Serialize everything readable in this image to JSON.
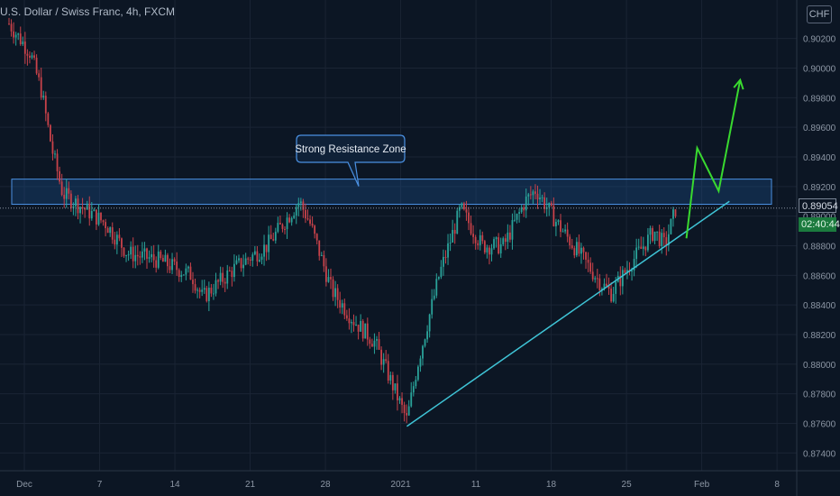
{
  "header": {
    "symbol_title": "U.S. Dollar / Swiss Franc, 4h, FXCM",
    "currency_badge": "CHF"
  },
  "price_tags": {
    "last_price": "0.89054",
    "countdown": "02:40:44"
  },
  "annotation": {
    "label": "Strong Resistance Zone"
  },
  "colors": {
    "background": "#0c1624",
    "grid": "#1a2434",
    "up_candle": "#2aa39a",
    "down_candle": "#c8424a",
    "zone_fill": "#1e4f8c",
    "zone_border": "#4a90e2",
    "trendline": "#3fc4d6",
    "projection": "#39d92f",
    "axis_text": "#8c96a4"
  },
  "chart_data": {
    "type": "candlestick",
    "symbol": "USDCHF",
    "timeframe": "4h",
    "x_ticks": [
      "Dec",
      "7",
      "14",
      "21",
      "28",
      "2021",
      "11",
      "18",
      "25",
      "Feb",
      "8"
    ],
    "y_ticks": [
      "0.87400",
      "0.87600",
      "0.87800",
      "0.88000",
      "0.88200",
      "0.88400",
      "0.88600",
      "0.88800",
      "0.89000",
      "0.89200",
      "0.89400",
      "0.89600",
      "0.89800",
      "0.90000",
      "0.90200"
    ],
    "ylim": [
      0.8728,
      0.9046
    ],
    "resistance_zone": [
      0.8908,
      0.8925
    ],
    "last_price": 0.89054,
    "ascending_trendline": [
      {
        "x": "Jan 6",
        "y": 0.8758
      },
      {
        "x": "Feb 5",
        "y": 0.891
      }
    ],
    "projection_path": [
      {
        "x": "Feb 1",
        "y": 0.8885
      },
      {
        "x": "Feb 2",
        "y": 0.8946
      },
      {
        "x": "Feb 4",
        "y": 0.8917
      },
      {
        "x": "Feb 6",
        "y": 0.8992
      }
    ],
    "price_path": [
      {
        "x": "Nov 30",
        "y": 0.903
      },
      {
        "x": "Dec 2",
        "y": 0.901
      },
      {
        "x": "Dec 3",
        "y": 0.8985
      },
      {
        "x": "Dec 4",
        "y": 0.8945
      },
      {
        "x": "Dec 5",
        "y": 0.8915
      },
      {
        "x": "Dec 7",
        "y": 0.8905
      },
      {
        "x": "Dec 9",
        "y": 0.8895
      },
      {
        "x": "Dec 11",
        "y": 0.8875
      },
      {
        "x": "Dec 14",
        "y": 0.887
      },
      {
        "x": "Dec 17",
        "y": 0.886
      },
      {
        "x": "Dec 18",
        "y": 0.8845
      },
      {
        "x": "Dec 21",
        "y": 0.8865
      },
      {
        "x": "Dec 24",
        "y": 0.888
      },
      {
        "x": "Dec 27",
        "y": 0.891
      },
      {
        "x": "Dec 28",
        "y": 0.8895
      },
      {
        "x": "Dec 30",
        "y": 0.885
      },
      {
        "x": "Jan 1",
        "y": 0.883
      },
      {
        "x": "Jan 3",
        "y": 0.8815
      },
      {
        "x": "Jan 5",
        "y": 0.878
      },
      {
        "x": "Jan 6",
        "y": 0.8762
      },
      {
        "x": "Jan 7",
        "y": 0.88
      },
      {
        "x": "Jan 9",
        "y": 0.886
      },
      {
        "x": "Jan 11",
        "y": 0.8905
      },
      {
        "x": "Jan 13",
        "y": 0.888
      },
      {
        "x": "Jan 15",
        "y": 0.888
      },
      {
        "x": "Jan 17",
        "y": 0.891
      },
      {
        "x": "Jan 18",
        "y": 0.8918
      },
      {
        "x": "Jan 20",
        "y": 0.8895
      },
      {
        "x": "Jan 22",
        "y": 0.8875
      },
      {
        "x": "Jan 24",
        "y": 0.8855
      },
      {
        "x": "Jan 25",
        "y": 0.8848
      },
      {
        "x": "Jan 27",
        "y": 0.887
      },
      {
        "x": "Jan 29",
        "y": 0.889
      },
      {
        "x": "Jan 30",
        "y": 0.888
      },
      {
        "x": "Jan 31",
        "y": 0.8905
      }
    ]
  }
}
